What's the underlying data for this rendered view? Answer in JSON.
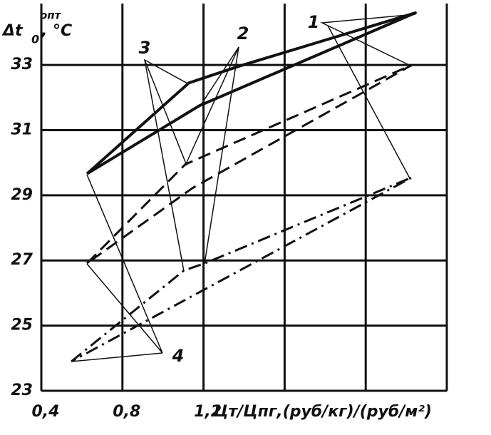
{
  "chart_data": {
    "type": "line",
    "y_label": {
      "base": "Δt",
      "sub": "0",
      "sup": "опт",
      "unit": ", °C"
    },
    "x_label": "Цт/Цпг,(руб/кг)/(руб/м²)",
    "xlim": [
      0.4,
      2.4
    ],
    "ylim": [
      23,
      34.6
    ],
    "xticks": [
      {
        "value": 0.4,
        "label": "0,4"
      },
      {
        "value": 0.8,
        "label": "0,8"
      },
      {
        "value": 1.2,
        "label": "1,2"
      }
    ],
    "xgrid": [
      0.4,
      0.8,
      1.2,
      1.6,
      2.0,
      2.4
    ],
    "yticks": [
      23,
      25,
      27,
      29,
      31,
      33
    ],
    "grid": true,
    "annotations": [
      "1",
      "2",
      "3",
      "4"
    ],
    "series": [
      {
        "color": "#111111",
        "dash": "solid",
        "width": 4,
        "x": [
          0.625,
          1.128,
          1.374,
          2.245,
          1.18,
          0.625
        ],
        "values": [
          29.66,
          32.45,
          32.96,
          34.6,
          31.75,
          29.66
        ]
      },
      {
        "color": "#111111",
        "dash": "dashed",
        "width": 3,
        "x": [
          0.625,
          1.11,
          2.228,
          1.145,
          0.625
        ],
        "values": [
          26.91,
          29.95,
          33.0,
          29.22,
          26.91
        ]
      },
      {
        "color": "#111111",
        "dash": "dashdot",
        "width": 3,
        "x": [
          0.548,
          1.103,
          1.205,
          2.228,
          0.548
        ],
        "values": [
          23.9,
          26.69,
          26.91,
          29.55,
          23.9
        ]
      }
    ]
  }
}
